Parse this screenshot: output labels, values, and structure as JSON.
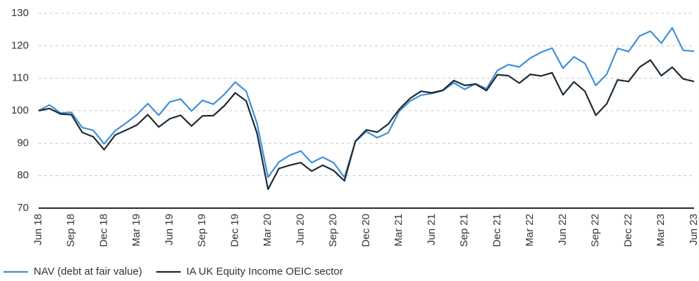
{
  "chart_data": {
    "type": "line",
    "categories": [
      "Jun 18",
      null,
      null,
      "Sep 18",
      null,
      null,
      "Dec 18",
      null,
      null,
      "Mar 19",
      null,
      null,
      "Jun 19",
      null,
      null,
      "Sep 19",
      null,
      null,
      "Dec 19",
      null,
      null,
      "Mar 20",
      null,
      null,
      "Jun 20",
      null,
      null,
      "Sep 20",
      null,
      null,
      "Dec 20",
      null,
      null,
      "Mar 21",
      null,
      null,
      "Jun 21",
      null,
      null,
      "Sep 21",
      null,
      null,
      "Dec 21",
      null,
      null,
      "Mar 22",
      null,
      null,
      "Jun 22",
      null,
      null,
      "Sep 22",
      null,
      null,
      "Dec 22",
      null,
      null,
      "Mar 23",
      null,
      null,
      "Jun 23"
    ],
    "series": [
      {
        "name": "NAV (debt at fair value)",
        "color": "#3f8fd8",
        "values": [
          100,
          101.8,
          99.3,
          99.5,
          94.8,
          94.0,
          89.8,
          93.8,
          96.2,
          98.8,
          102.2,
          98.6,
          102.7,
          103.6,
          99.9,
          103.2,
          102.0,
          105.0,
          108.8,
          106.0,
          96.0,
          79.5,
          84.2,
          86.3,
          87.6,
          84.0,
          85.7,
          84.0,
          79.5,
          90.5,
          93.6,
          91.7,
          93.2,
          99.8,
          103.0,
          104.8,
          105.3,
          106.2,
          108.6,
          106.6,
          108.3,
          106.8,
          112.4,
          114.2,
          113.5,
          116.2,
          118.0,
          119.3,
          113.1,
          116.6,
          114.6,
          107.8,
          111.2,
          119.2,
          118.2,
          123.0,
          124.5,
          120.8,
          125.5,
          118.6,
          118.3
        ]
      },
      {
        "name": "IA UK Equity Income OEIC sector",
        "color": "#1c2a35",
        "values": [
          100,
          100.7,
          99.0,
          98.8,
          93.3,
          92.0,
          88.0,
          92.5,
          94.0,
          95.6,
          98.8,
          95.0,
          97.5,
          98.6,
          95.3,
          98.4,
          98.5,
          101.5,
          105.5,
          103.0,
          93.0,
          75.8,
          82.2,
          83.2,
          84.0,
          81.4,
          83.2,
          81.6,
          78.4,
          90.6,
          94.1,
          93.4,
          95.9,
          100.4,
          103.8,
          106.0,
          105.5,
          106.3,
          109.3,
          107.8,
          108.2,
          106.2,
          111.1,
          110.8,
          108.5,
          111.2,
          110.7,
          111.7,
          104.9,
          108.9,
          106.0,
          98.6,
          102.1,
          109.5,
          109.0,
          113.4,
          115.6,
          110.8,
          113.4,
          109.8,
          109.0
        ]
      }
    ],
    "ylim": [
      70,
      130
    ],
    "yticks": [
      70,
      80,
      90,
      100,
      110,
      120,
      130
    ],
    "grid": true,
    "legend": "bottom"
  }
}
